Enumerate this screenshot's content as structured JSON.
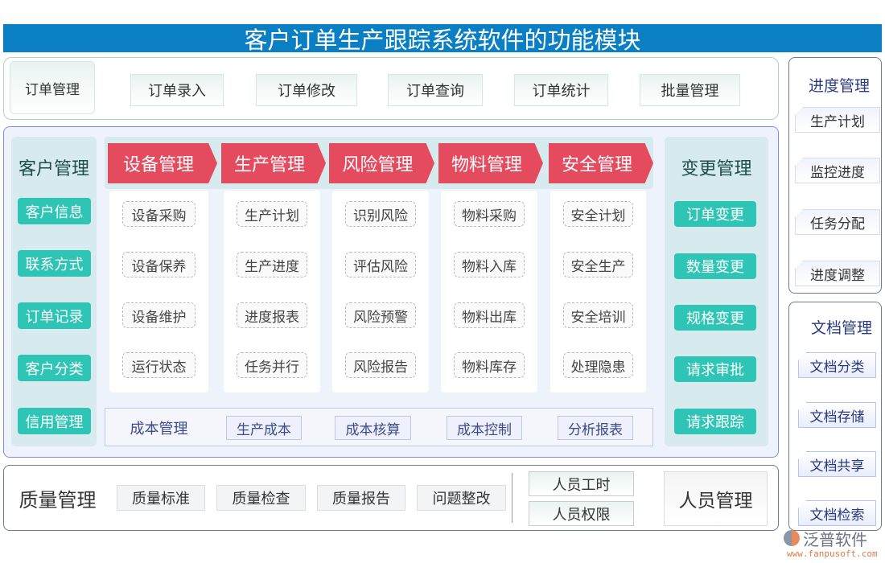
{
  "title": "客户订单生产跟踪系统软件的功能模块",
  "order": {
    "label": "订单管理",
    "items": [
      "订单录入",
      "订单修改",
      "订单查询",
      "订单统计",
      "批量管理"
    ]
  },
  "customer": {
    "title": "客户管理",
    "items": [
      "客户信息",
      "联系方式",
      "订单记录",
      "客户分类",
      "信用管理"
    ]
  },
  "modules": [
    {
      "title": "设备管理",
      "items": [
        "设备采购",
        "设备保养",
        "设备维护",
        "运行状态"
      ]
    },
    {
      "title": "生产管理",
      "items": [
        "生产计划",
        "生产进度",
        "进度报表",
        "任务并行"
      ]
    },
    {
      "title": "风险管理",
      "items": [
        "识别风险",
        "评估风险",
        "风险预警",
        "风险报告"
      ]
    },
    {
      "title": "物料管理",
      "items": [
        "物料采购",
        "物料入库",
        "物料出库",
        "物料库存"
      ]
    },
    {
      "title": "安全管理",
      "items": [
        "安全计划",
        "安全生产",
        "安全培训",
        "处理隐患"
      ]
    }
  ],
  "cost": {
    "title": "成本管理",
    "items": [
      "生产成本",
      "成本核算",
      "成本控制",
      "分析报表"
    ]
  },
  "change": {
    "title": "变更管理",
    "items": [
      "订单变更",
      "数量变更",
      "规格变更",
      "请求审批",
      "请求跟踪"
    ]
  },
  "progress": {
    "title": "进度管理",
    "items": [
      "生产计划",
      "监控进度",
      "任务分配",
      "进度调整"
    ]
  },
  "docs": {
    "title": "文档管理",
    "items": [
      "文档分类",
      "文档存储",
      "文档共享",
      "文档检索"
    ]
  },
  "quality": {
    "title": "质量管理",
    "items": [
      "质量标准",
      "质量检查",
      "质量报告",
      "问题整改"
    ]
  },
  "staff": {
    "title": "人员管理",
    "items": [
      "人员工时",
      "人员权限"
    ]
  },
  "logo": {
    "name": "泛普软件",
    "url": "www.fanpusoft.com"
  },
  "colors": {
    "title_bar": "#0a7fc4",
    "module_header": "#e54b5e",
    "green_button": "#2ec4b6"
  }
}
